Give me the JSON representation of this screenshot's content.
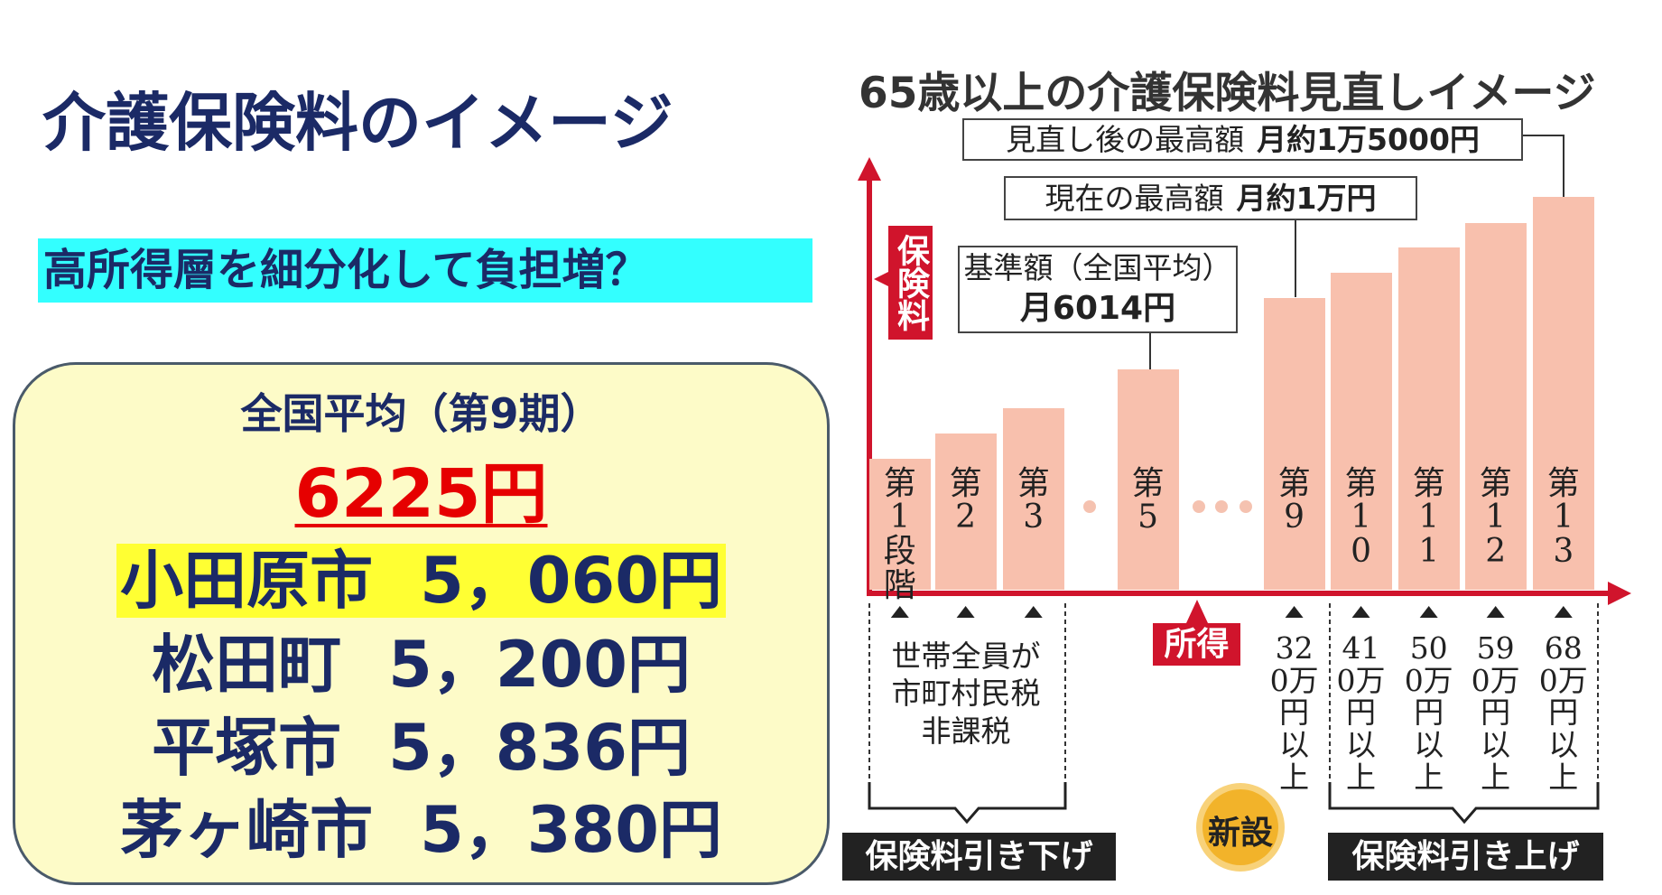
{
  "title": "介護保険料のイメージ",
  "subtitle": "高所得層を細分化して負担増？",
  "summary": {
    "heading": "全国平均（第9期）",
    "average": "6225円",
    "rows": [
      {
        "city": "小田原市",
        "amount": "5，060円"
      },
      {
        "city": "松田町",
        "amount": "5，200円"
      },
      {
        "city": "平塚市",
        "amount": "5，836円"
      },
      {
        "city": "茅ヶ崎市",
        "amount": "5，380円"
      }
    ]
  },
  "figure": {
    "title": "65歳以上の介護保険料見直しイメージ",
    "y_label": "保険料",
    "x_label": "所得",
    "callouts": [
      {
        "label": "見直し後の最高額",
        "amount": "月約1万5000円"
      },
      {
        "label": "現在の最高額",
        "amount": "月約1万円"
      },
      {
        "label": "基準額（全国平均）",
        "amount": "月6014円"
      }
    ],
    "stages": [
      "第1段階",
      "第2",
      "第3",
      "第5",
      "第9",
      "第10",
      "第11",
      "第12",
      "第13"
    ],
    "incomes": [
      "世帯全員が市町村民税非課税",
      "320万円以上",
      "410万円以上",
      "500万円以上",
      "590万円以上",
      "680万円以上"
    ],
    "lower_label": "保険料引き下げ",
    "raise_label": "保険料引き上げ",
    "new_badge": "新設"
  }
}
